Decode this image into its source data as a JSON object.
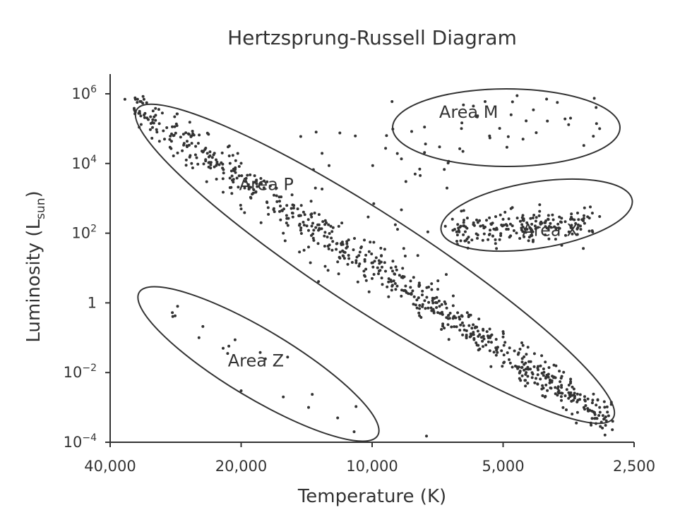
{
  "chart_data": {
    "type": "scatter",
    "title": "Hertzsprung-Russell Diagram",
    "xlabel": "Temperature (K)",
    "ylabel_main": "Luminosity (L",
    "ylabel_sub": "sun",
    "ylabel_close": ")",
    "x_scale": "log, reversed",
    "y_scale": "log",
    "xlim": [
      40000,
      2500
    ],
    "ylim": [
      0.0001,
      1000000
    ],
    "grid": false,
    "x_ticks": [
      {
        "value": 40000,
        "label": "40,000"
      },
      {
        "value": 20000,
        "label": "20,000"
      },
      {
        "value": 10000,
        "label": "10,000"
      },
      {
        "value": 5000,
        "label": "5,000"
      },
      {
        "value": 2500,
        "label": "2,500"
      }
    ],
    "y_ticks": [
      {
        "value": 1000000,
        "base": "10",
        "exp": "6"
      },
      {
        "value": 10000,
        "base": "10",
        "exp": "4"
      },
      {
        "value": 100,
        "base": "10",
        "exp": "2"
      },
      {
        "value": 1,
        "base": "1",
        "exp": ""
      },
      {
        "value": 0.01,
        "base": "10",
        "exp": "−2"
      },
      {
        "value": 0.0001,
        "base": "10",
        "exp": "−4"
      }
    ],
    "regions": [
      {
        "label": "Area M",
        "label_T": 6000,
        "label_L": 300000
      },
      {
        "label": "Area P",
        "label_T": 17500,
        "label_L": 2500
      },
      {
        "label": "Area X",
        "label_T": 3900,
        "label_L": 120
      },
      {
        "label": "Area Z",
        "label_T": 18500,
        "label_L": 0.022
      }
    ],
    "stars_sample": [
      {
        "T": 37000,
        "L": 700000
      },
      {
        "T": 35000,
        "L": 300000
      },
      {
        "T": 32000,
        "L": 150000
      },
      {
        "T": 30000,
        "L": 50000
      },
      {
        "T": 28000,
        "L": 20000
      },
      {
        "T": 26000,
        "L": 10000
      },
      {
        "T": 24000,
        "L": 3000
      },
      {
        "T": 22000,
        "L": 1500
      },
      {
        "T": 20000,
        "L": 500
      },
      {
        "T": 18000,
        "L": 200
      },
      {
        "T": 16000,
        "L": 100
      },
      {
        "T": 14000,
        "L": 40
      },
      {
        "T": 12000,
        "L": 15
      },
      {
        "T": 10000,
        "L": 5
      },
      {
        "T": 9000,
        "L": 3
      },
      {
        "T": 8000,
        "L": 1.5
      },
      {
        "T": 7000,
        "L": 0.8
      },
      {
        "T": 6000,
        "L": 0.4
      },
      {
        "T": 5000,
        "L": 0.15
      },
      {
        "T": 4500,
        "L": 0.06
      },
      {
        "T": 4000,
        "L": 0.02
      },
      {
        "T": 3500,
        "L": 0.005
      },
      {
        "T": 3000,
        "L": 0.001
      },
      {
        "T": 2800,
        "L": 0.0004
      },
      {
        "T": 5500,
        "L": 150
      },
      {
        "T": 5000,
        "L": 250
      },
      {
        "T": 4500,
        "L": 150
      },
      {
        "T": 4000,
        "L": 200
      },
      {
        "T": 3500,
        "L": 250
      },
      {
        "T": 3000,
        "L": 300
      },
      {
        "T": 5500,
        "L": 600000
      },
      {
        "T": 4500,
        "L": 50000
      },
      {
        "T": 3500,
        "L": 200000
      },
      {
        "T": 3000,
        "L": 100000
      },
      {
        "T": 7000,
        "L": 30000
      },
      {
        "T": 9000,
        "L": 600000
      },
      {
        "T": 28000,
        "L": 0.8
      },
      {
        "T": 25000,
        "L": 0.1
      },
      {
        "T": 22000,
        "L": 0.05
      },
      {
        "T": 20000,
        "L": 0.003
      },
      {
        "T": 16000,
        "L": 0.002
      },
      {
        "T": 14000,
        "L": 0.001
      },
      {
        "T": 12000,
        "L": 0.0005
      },
      {
        "T": 11000,
        "L": 0.0002
      },
      {
        "T": 7500,
        "L": 0.00015
      }
    ]
  }
}
